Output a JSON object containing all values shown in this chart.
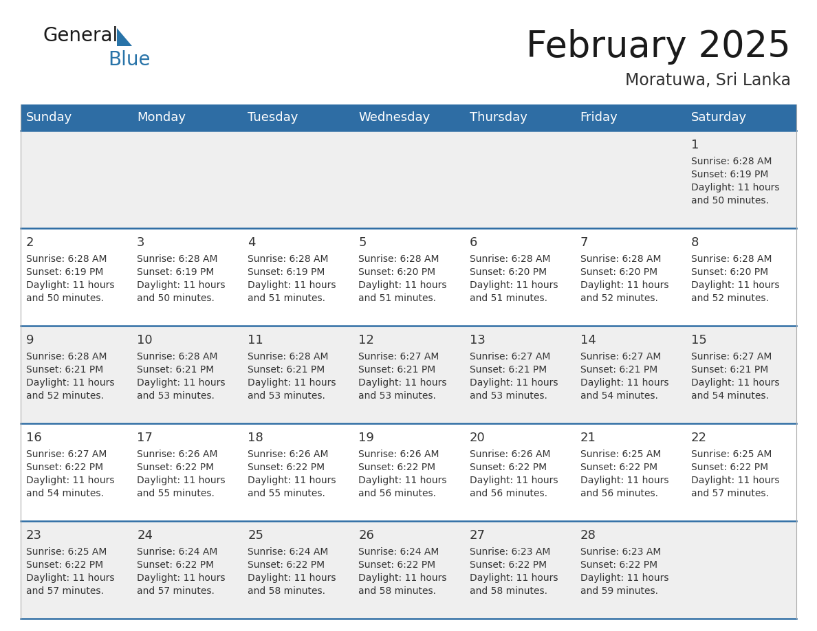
{
  "title": "February 2025",
  "subtitle": "Moratuwa, Sri Lanka",
  "header_bg": "#2E6DA4",
  "header_text": "#FFFFFF",
  "row_bg_light": "#EFEFEF",
  "row_bg_white": "#FFFFFF",
  "border_color": "#2E6DA4",
  "day_headers": [
    "Sunday",
    "Monday",
    "Tuesday",
    "Wednesday",
    "Thursday",
    "Friday",
    "Saturday"
  ],
  "calendar_data": [
    [
      null,
      null,
      null,
      null,
      null,
      null,
      {
        "day": 1,
        "sunrise": "6:28 AM",
        "sunset": "6:19 PM",
        "daylight": "11 hours\nand 50 minutes."
      }
    ],
    [
      {
        "day": 2,
        "sunrise": "6:28 AM",
        "sunset": "6:19 PM",
        "daylight": "11 hours\nand 50 minutes."
      },
      {
        "day": 3,
        "sunrise": "6:28 AM",
        "sunset": "6:19 PM",
        "daylight": "11 hours\nand 50 minutes."
      },
      {
        "day": 4,
        "sunrise": "6:28 AM",
        "sunset": "6:19 PM",
        "daylight": "11 hours\nand 51 minutes."
      },
      {
        "day": 5,
        "sunrise": "6:28 AM",
        "sunset": "6:20 PM",
        "daylight": "11 hours\nand 51 minutes."
      },
      {
        "day": 6,
        "sunrise": "6:28 AM",
        "sunset": "6:20 PM",
        "daylight": "11 hours\nand 51 minutes."
      },
      {
        "day": 7,
        "sunrise": "6:28 AM",
        "sunset": "6:20 PM",
        "daylight": "11 hours\nand 52 minutes."
      },
      {
        "day": 8,
        "sunrise": "6:28 AM",
        "sunset": "6:20 PM",
        "daylight": "11 hours\nand 52 minutes."
      }
    ],
    [
      {
        "day": 9,
        "sunrise": "6:28 AM",
        "sunset": "6:21 PM",
        "daylight": "11 hours\nand 52 minutes."
      },
      {
        "day": 10,
        "sunrise": "6:28 AM",
        "sunset": "6:21 PM",
        "daylight": "11 hours\nand 53 minutes."
      },
      {
        "day": 11,
        "sunrise": "6:28 AM",
        "sunset": "6:21 PM",
        "daylight": "11 hours\nand 53 minutes."
      },
      {
        "day": 12,
        "sunrise": "6:27 AM",
        "sunset": "6:21 PM",
        "daylight": "11 hours\nand 53 minutes."
      },
      {
        "day": 13,
        "sunrise": "6:27 AM",
        "sunset": "6:21 PM",
        "daylight": "11 hours\nand 53 minutes."
      },
      {
        "day": 14,
        "sunrise": "6:27 AM",
        "sunset": "6:21 PM",
        "daylight": "11 hours\nand 54 minutes."
      },
      {
        "day": 15,
        "sunrise": "6:27 AM",
        "sunset": "6:21 PM",
        "daylight": "11 hours\nand 54 minutes."
      }
    ],
    [
      {
        "day": 16,
        "sunrise": "6:27 AM",
        "sunset": "6:22 PM",
        "daylight": "11 hours\nand 54 minutes."
      },
      {
        "day": 17,
        "sunrise": "6:26 AM",
        "sunset": "6:22 PM",
        "daylight": "11 hours\nand 55 minutes."
      },
      {
        "day": 18,
        "sunrise": "6:26 AM",
        "sunset": "6:22 PM",
        "daylight": "11 hours\nand 55 minutes."
      },
      {
        "day": 19,
        "sunrise": "6:26 AM",
        "sunset": "6:22 PM",
        "daylight": "11 hours\nand 56 minutes."
      },
      {
        "day": 20,
        "sunrise": "6:26 AM",
        "sunset": "6:22 PM",
        "daylight": "11 hours\nand 56 minutes."
      },
      {
        "day": 21,
        "sunrise": "6:25 AM",
        "sunset": "6:22 PM",
        "daylight": "11 hours\nand 56 minutes."
      },
      {
        "day": 22,
        "sunrise": "6:25 AM",
        "sunset": "6:22 PM",
        "daylight": "11 hours\nand 57 minutes."
      }
    ],
    [
      {
        "day": 23,
        "sunrise": "6:25 AM",
        "sunset": "6:22 PM",
        "daylight": "11 hours\nand 57 minutes."
      },
      {
        "day": 24,
        "sunrise": "6:24 AM",
        "sunset": "6:22 PM",
        "daylight": "11 hours\nand 57 minutes."
      },
      {
        "day": 25,
        "sunrise": "6:24 AM",
        "sunset": "6:22 PM",
        "daylight": "11 hours\nand 58 minutes."
      },
      {
        "day": 26,
        "sunrise": "6:24 AM",
        "sunset": "6:22 PM",
        "daylight": "11 hours\nand 58 minutes."
      },
      {
        "day": 27,
        "sunrise": "6:23 AM",
        "sunset": "6:22 PM",
        "daylight": "11 hours\nand 58 minutes."
      },
      {
        "day": 28,
        "sunrise": "6:23 AM",
        "sunset": "6:22 PM",
        "daylight": "11 hours\nand 59 minutes."
      },
      null
    ]
  ],
  "title_fontsize": 38,
  "subtitle_fontsize": 17,
  "header_fontsize": 13,
  "day_num_fontsize": 13,
  "cell_text_fontsize": 10,
  "logo_general_size": 20,
  "logo_blue_size": 20
}
